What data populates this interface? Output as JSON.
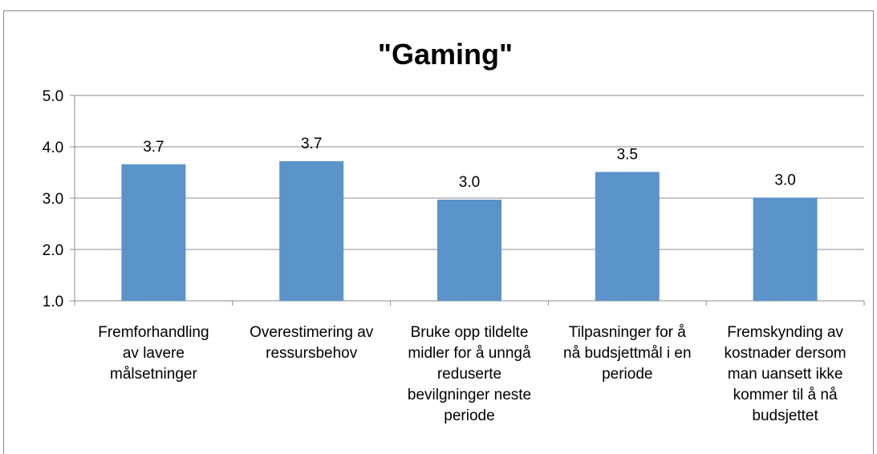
{
  "chart_data": {
    "type": "bar",
    "title": "\"Gaming\"",
    "xlabel": "",
    "ylabel": "",
    "ylim": [
      1.0,
      5.0
    ],
    "yticks": [
      "1.0",
      "2.0",
      "3.0",
      "4.0",
      "5.0"
    ],
    "grid": true,
    "legend": "none",
    "categories": [
      [
        "Fremforhandling",
        "av lavere",
        "målsetninger"
      ],
      [
        "Overestimering av",
        "ressursbehov"
      ],
      [
        "Bruke opp tildelte",
        "midler for å unngå",
        "reduserte",
        "bevilgninger neste",
        "periode"
      ],
      [
        "Tilpasninger for å",
        "nå budsjettmål i en",
        "periode"
      ],
      [
        "Fremskynding av",
        "kostnader dersom",
        "man uansett ikke",
        "kommer til å nå",
        "budsjettet"
      ]
    ],
    "values": [
      3.66,
      3.72,
      2.97,
      3.51,
      3.01
    ],
    "data_labels": [
      "3.7",
      "3.7",
      "3.0",
      "3.5",
      "3.0"
    ],
    "colors": {
      "bar": "#5b93cb",
      "grid": "#8c8c8c",
      "axis": "#8c8c8c"
    }
  }
}
